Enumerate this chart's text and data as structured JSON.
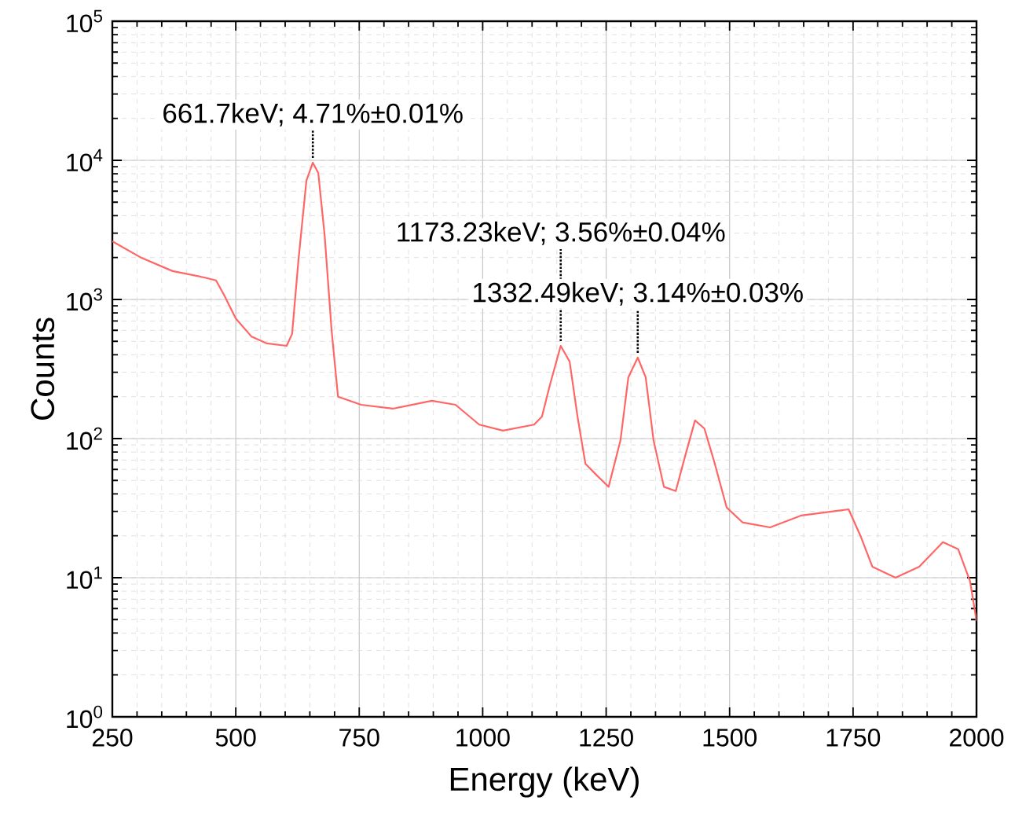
{
  "chart_data": {
    "type": "line",
    "xlabel": "Energy (keV)",
    "ylabel": "Counts",
    "log": "y",
    "grid": true,
    "line_style": "solid",
    "marker": "none",
    "xlim": [
      250,
      2000
    ],
    "xticks": [
      250,
      500,
      750,
      1000,
      1250,
      1500,
      1750,
      2000
    ],
    "ylim": [
      1,
      100000
    ],
    "yticks": [
      {
        "value": 1,
        "label": "10$^{0}$"
      },
      {
        "value": 10,
        "label": "10$^{1}$"
      },
      {
        "value": 100,
        "label": "10$^{2}$"
      },
      {
        "value": 1000,
        "label": "10$^{3}$"
      },
      {
        "value": 10000,
        "label": "10$^{4}$"
      },
      {
        "value": 100000,
        "label": "10$^{5}$"
      }
    ],
    "x": [
      250,
      309,
      372,
      436,
      460,
      476,
      500,
      532,
      563,
      603,
      614,
      627,
      643,
      656,
      667,
      680,
      694,
      707,
      754,
      818,
      897,
      945,
      993,
      1041,
      1104,
      1120,
      1136,
      1158,
      1176,
      1192,
      1208,
      1232,
      1255,
      1279,
      1295,
      1314,
      1330,
      1346,
      1367,
      1391,
      1410,
      1430,
      1449,
      1470,
      1494,
      1526,
      1582,
      1645,
      1709,
      1741,
      1765,
      1789,
      1836,
      1884,
      1932,
      1963,
      1987,
      2000
    ],
    "series": [
      {
        "color": "#ff6666",
        "values": [
          2620,
          1990,
          1600,
          1440,
          1370,
          1080,
          730,
          540,
          483,
          464,
          565,
          1940,
          7130,
          9620,
          8120,
          2870,
          600,
          200,
          175,
          164,
          187,
          175,
          126,
          114,
          126,
          144,
          242,
          464,
          358,
          144,
          66,
          54,
          45,
          97,
          276,
          382,
          276,
          97,
          45,
          42,
          75,
          135,
          118,
          66,
          32,
          25,
          23,
          28,
          30,
          31,
          20,
          12,
          10,
          12,
          18,
          16,
          9.4,
          4.9
        ]
      }
    ],
    "annotations": [
      {
        "text": "661.7keV; 4.71%±0.01%",
        "x": 656,
        "y": 9620
      },
      {
        "text": "1173.23keV; 3.56%±0.04%",
        "x": 1158,
        "y": 464
      },
      {
        "text": "1332.49keV; 3.14%±0.03%",
        "x": 1314,
        "y": 382
      }
    ]
  }
}
